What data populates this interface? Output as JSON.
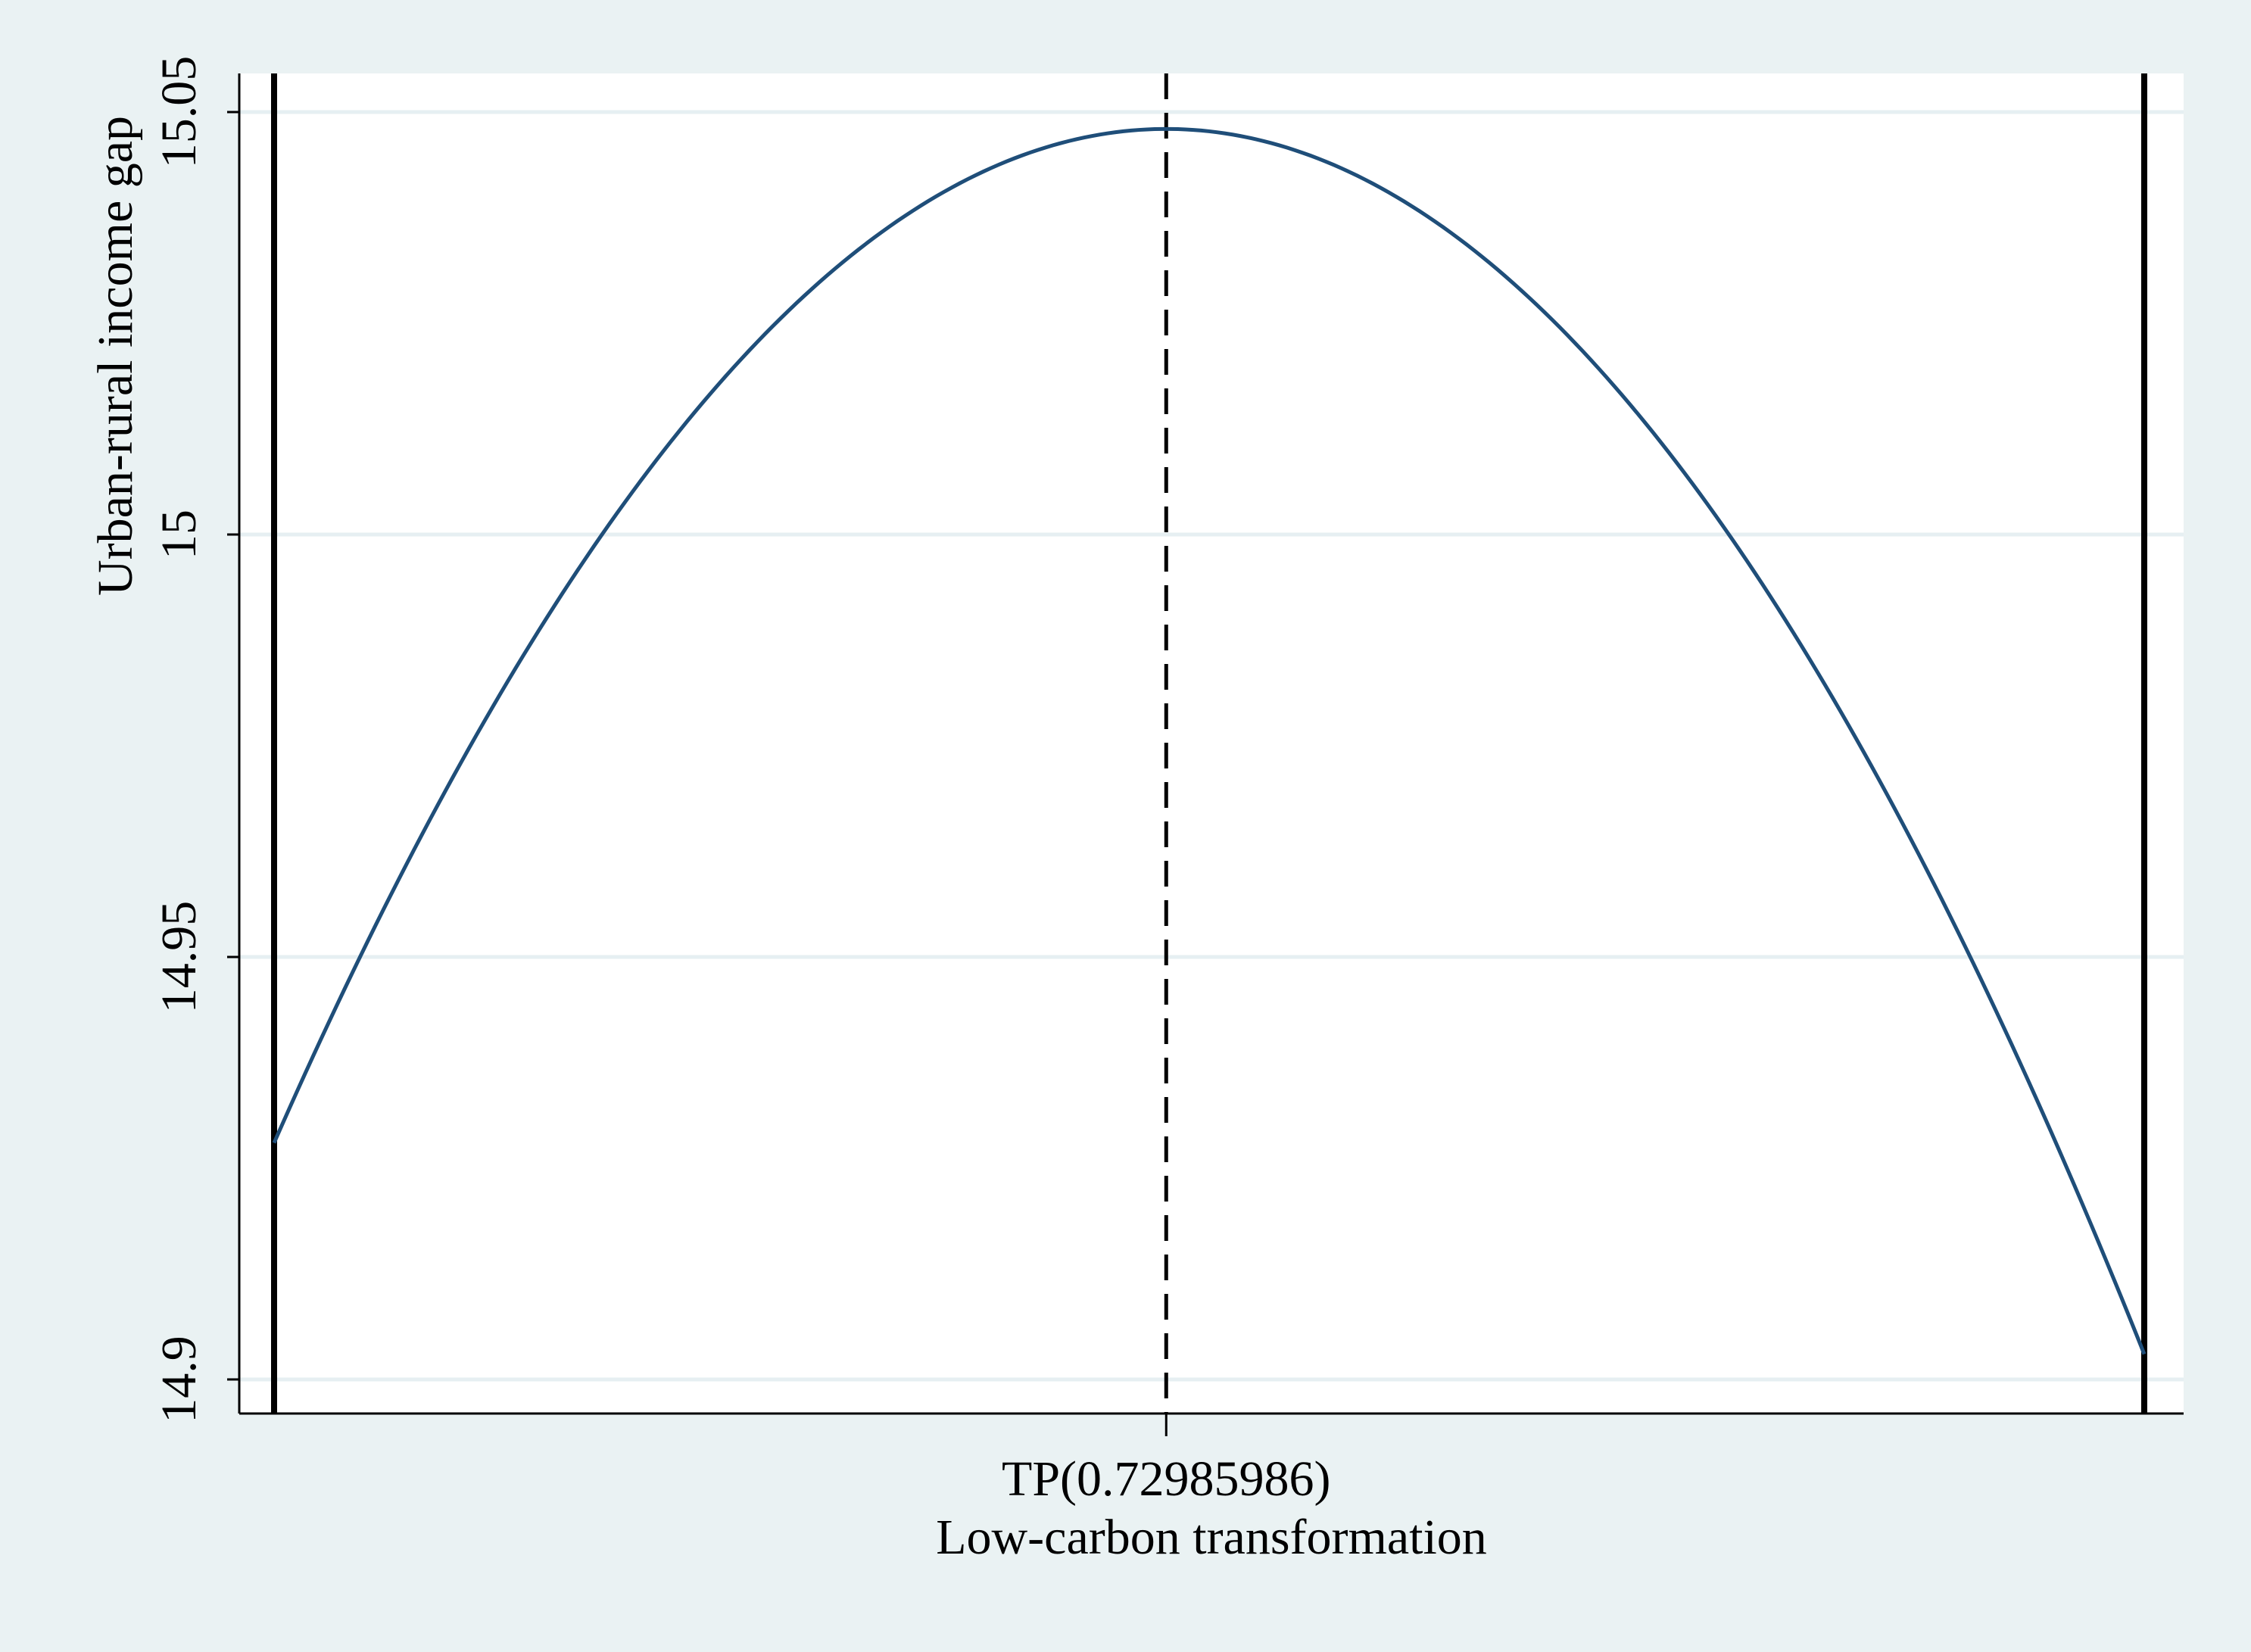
{
  "chart_data": {
    "type": "line",
    "title": "",
    "xlabel": "Low-carbon transformation",
    "ylabel": "Urban-rural income gap",
    "ylim": [
      14.9,
      15.05
    ],
    "yticks": [
      {
        "value": 14.9,
        "label": "14.9"
      },
      {
        "value": 14.95,
        "label": "14.95"
      },
      {
        "value": 15.0,
        "label": "15"
      },
      {
        "value": 15.05,
        "label": "15.05"
      }
    ],
    "grid": "horizontal",
    "turning_point": {
      "x": 0.72985986,
      "label": "TP(0.72985986)"
    },
    "series": [
      {
        "x": [
          0.0,
          0.1,
          0.2,
          0.3,
          0.4,
          0.5,
          0.6,
          0.7,
          0.72985986,
          0.8,
          0.9,
          1.0,
          1.1,
          1.2,
          1.3,
          1.4,
          1.5,
          1.53
        ],
        "y": [
          14.928,
          14.9608,
          14.9878,
          15.0089,
          15.0241,
          15.0335,
          15.0371,
          15.048,
          15.048,
          15.0469,
          15.0429,
          15.033,
          15.0173,
          14.9957,
          14.9683,
          14.935,
          14.8959,
          14.903
        ]
      }
    ],
    "x_bounds": [
      0.0,
      1.53
    ],
    "colors": {
      "line": "#1f4e79",
      "grid": "#e6eff2",
      "background": "#eaf2f3",
      "plot": "#ffffff"
    }
  }
}
